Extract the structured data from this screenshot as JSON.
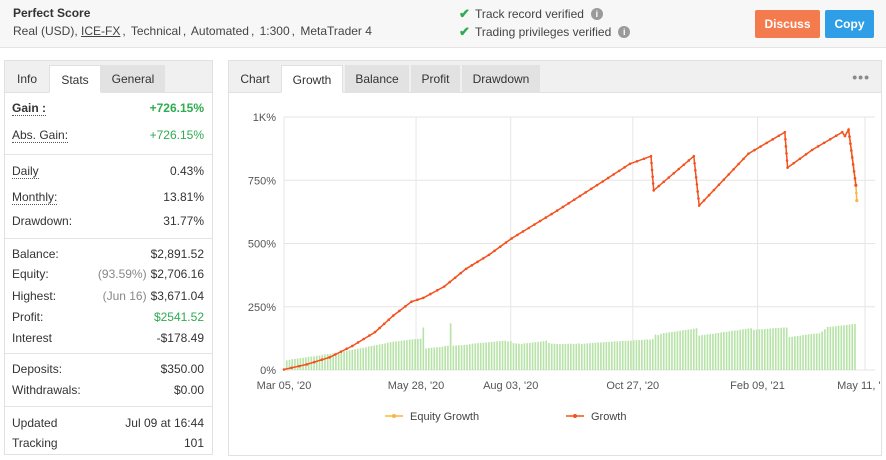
{
  "header": {
    "name": "Perfect Score",
    "account_type": "Real (USD),",
    "broker": "ICE-FX",
    "system": "Technical",
    "execution": "Automated",
    "leverage": "1:300",
    "platform": "MetaTrader 4",
    "verify_track": "Track record verified",
    "verify_privileges": "Trading privileges verified",
    "discuss_label": "Discuss",
    "copy_label": "Copy",
    "colors": {
      "discuss": "#f47b4e",
      "copy": "#2e9ee6",
      "verified": "#2eac4f"
    }
  },
  "left_tabs": [
    "Info",
    "Stats",
    "General"
  ],
  "stats": {
    "gain_label": "Gain :",
    "gain_value": "+726.15%",
    "abs_gain_label": "Abs. Gain:",
    "abs_gain_value": "+726.15%",
    "daily_label": "Daily",
    "daily_value": "0.43%",
    "monthly_label": "Monthly:",
    "monthly_value": "13.81%",
    "drawdown_label": "Drawdown:",
    "drawdown_value": "31.77%",
    "balance_label": "Balance:",
    "balance_value": "$2,891.52",
    "equity_label": "Equity:",
    "equity_pre": "(93.59%)",
    "equity_value": "$2,706.16",
    "highest_label": "Highest:",
    "highest_pre": "(Jun 16)",
    "highest_value": "$3,671.04",
    "profit_label": "Profit:",
    "profit_value": "$2541.52",
    "interest_label": "Interest",
    "interest_value": "-$178.49",
    "deposits_label": "Deposits:",
    "deposits_value": "$350.00",
    "withdrawals_label": "Withdrawals:",
    "withdrawals_value": "$0.00",
    "updated_label": "Updated",
    "updated_value": "Jul 09 at 16:44",
    "tracking_label": "Tracking",
    "tracking_value": "101"
  },
  "chart_tabs": [
    "Chart",
    "Growth",
    "Balance",
    "Profit",
    "Drawdown"
  ],
  "chart_data": {
    "type": "line",
    "y_ticks": [
      "0%",
      "250%",
      "500%",
      "750%",
      "1K%"
    ],
    "ylim": [
      0,
      1000
    ],
    "x_ticks": [
      "Mar 05, '20",
      "May 28, '20",
      "Aug 03, '20",
      "Oct 27, '20",
      "Feb 09, '21",
      "May 11, '21"
    ],
    "x_tick_positions": [
      0,
      14.5,
      24.9,
      38.3,
      52.0,
      63.8
    ],
    "x_range": [
      0,
      64.9
    ],
    "legend": [
      "Equity Growth",
      "Growth"
    ],
    "colors": {
      "growth": "#f4511e",
      "equity": "#f9b53d",
      "bars": "#b7e3a8",
      "grid": "#e6e6e6"
    },
    "series": [
      {
        "name": "Growth",
        "points": [
          [
            0,
            2
          ],
          [
            2.5,
            22
          ],
          [
            5,
            50
          ],
          [
            7.5,
            95
          ],
          [
            10,
            150
          ],
          [
            12,
            215
          ],
          [
            14,
            270
          ],
          [
            15.3,
            285
          ],
          [
            17.6,
            330
          ],
          [
            20,
            400
          ],
          [
            22.5,
            455
          ],
          [
            25,
            520
          ],
          [
            30,
            630
          ],
          [
            35,
            745
          ],
          [
            38,
            815
          ],
          [
            40.3,
            845
          ],
          [
            40.6,
            710
          ],
          [
            45,
            845
          ],
          [
            45.6,
            650
          ],
          [
            51,
            855
          ],
          [
            55,
            940
          ],
          [
            55.3,
            800
          ],
          [
            58,
            870
          ],
          [
            61.3,
            940
          ],
          [
            61.6,
            925
          ],
          [
            62,
            950
          ],
          [
            62.8,
            730
          ]
        ]
      },
      {
        "name": "Equity Growth",
        "points": [
          [
            61.3,
            940
          ],
          [
            61.6,
            925
          ],
          [
            62,
            950
          ],
          [
            62.8,
            730
          ],
          [
            62.9,
            670
          ]
        ]
      }
    ],
    "bars": [
      [
        0.3,
        38
      ],
      [
        0.6,
        40
      ],
      [
        0.9,
        43
      ],
      [
        1.2,
        44
      ],
      [
        1.5,
        46
      ],
      [
        1.8,
        47
      ],
      [
        2.1,
        48
      ],
      [
        2.4,
        50
      ],
      [
        2.7,
        52
      ],
      [
        3.0,
        53
      ],
      [
        3.3,
        54
      ],
      [
        3.6,
        56
      ],
      [
        3.9,
        57
      ],
      [
        4.2,
        60
      ],
      [
        4.5,
        62
      ],
      [
        4.8,
        63
      ],
      [
        5.1,
        64
      ],
      [
        5.4,
        66
      ],
      [
        5.7,
        68
      ],
      [
        6.0,
        70
      ],
      [
        6.3,
        72
      ],
      [
        6.6,
        74
      ],
      [
        6.9,
        76
      ],
      [
        7.2,
        78
      ],
      [
        7.5,
        80
      ],
      [
        7.8,
        82
      ],
      [
        8.1,
        84
      ],
      [
        8.4,
        86
      ],
      [
        8.7,
        88
      ],
      [
        9.0,
        90
      ],
      [
        9.3,
        93
      ],
      [
        9.6,
        95
      ],
      [
        9.9,
        97
      ],
      [
        10.2,
        99
      ],
      [
        10.5,
        101
      ],
      [
        10.8,
        103
      ],
      [
        11.1,
        105
      ],
      [
        11.4,
        108
      ],
      [
        11.7,
        110
      ],
      [
        12.0,
        112
      ],
      [
        12.3,
        113
      ],
      [
        12.6,
        114
      ],
      [
        12.9,
        116
      ],
      [
        13.2,
        117
      ],
      [
        13.5,
        118
      ],
      [
        13.8,
        120
      ],
      [
        14.1,
        121
      ],
      [
        14.4,
        122
      ],
      [
        14.7,
        123
      ],
      [
        15.0,
        124
      ],
      [
        15.3,
        168
      ],
      [
        15.6,
        85
      ],
      [
        15.9,
        87
      ],
      [
        16.2,
        88
      ],
      [
        16.5,
        89
      ],
      [
        16.8,
        90
      ],
      [
        17.1,
        90
      ],
      [
        17.4,
        92
      ],
      [
        17.7,
        95
      ],
      [
        18.0,
        96
      ],
      [
        18.3,
        185
      ],
      [
        18.6,
        96
      ],
      [
        18.9,
        97
      ],
      [
        19.2,
        98
      ],
      [
        19.5,
        98
      ],
      [
        19.8,
        99
      ],
      [
        20.1,
        100
      ],
      [
        20.4,
        102
      ],
      [
        20.7,
        104
      ],
      [
        21.0,
        105
      ],
      [
        21.3,
        106
      ],
      [
        21.6,
        107
      ],
      [
        21.9,
        108
      ],
      [
        22.2,
        109
      ],
      [
        22.5,
        110
      ],
      [
        22.8,
        111
      ],
      [
        23.1,
        112
      ],
      [
        23.4,
        113
      ],
      [
        23.7,
        114
      ],
      [
        24.0,
        115
      ],
      [
        24.3,
        116
      ],
      [
        24.6,
        113
      ],
      [
        24.9,
        114
      ],
      [
        25.2,
        106
      ],
      [
        25.5,
        105
      ],
      [
        25.8,
        104
      ],
      [
        26.1,
        103
      ],
      [
        26.4,
        105
      ],
      [
        26.7,
        106
      ],
      [
        27.0,
        107
      ],
      [
        27.3,
        109
      ],
      [
        27.6,
        110
      ],
      [
        27.9,
        111
      ],
      [
        28.2,
        112
      ],
      [
        28.5,
        114
      ],
      [
        28.8,
        116
      ],
      [
        29.1,
        107
      ],
      [
        29.4,
        104
      ],
      [
        29.7,
        104
      ],
      [
        30.0,
        103
      ],
      [
        30.3,
        102
      ],
      [
        30.6,
        103
      ],
      [
        30.9,
        103
      ],
      [
        31.2,
        104
      ],
      [
        31.5,
        104
      ],
      [
        31.8,
        103
      ],
      [
        32.1,
        104
      ],
      [
        32.4,
        105
      ],
      [
        32.7,
        103
      ],
      [
        33.0,
        104
      ],
      [
        33.3,
        105
      ],
      [
        33.6,
        106
      ],
      [
        33.9,
        107
      ],
      [
        34.2,
        108
      ],
      [
        34.5,
        109
      ],
      [
        34.8,
        109
      ],
      [
        35.1,
        110
      ],
      [
        35.4,
        111
      ],
      [
        35.7,
        111
      ],
      [
        36.0,
        112
      ],
      [
        36.3,
        113
      ],
      [
        36.6,
        113
      ],
      [
        36.9,
        114
      ],
      [
        37.2,
        115
      ],
      [
        37.5,
        115
      ],
      [
        37.8,
        116
      ],
      [
        38.1,
        116
      ],
      [
        38.4,
        117
      ],
      [
        38.7,
        118
      ],
      [
        39.0,
        118
      ],
      [
        39.3,
        119
      ],
      [
        39.6,
        120
      ],
      [
        39.9,
        121
      ],
      [
        40.2,
        120
      ],
      [
        40.5,
        122
      ],
      [
        40.8,
        140
      ],
      [
        41.1,
        138
      ],
      [
        41.4,
        143
      ],
      [
        41.7,
        146
      ],
      [
        42.0,
        147
      ],
      [
        42.3,
        149
      ],
      [
        42.6,
        150
      ],
      [
        42.9,
        152
      ],
      [
        43.2,
        153
      ],
      [
        43.5,
        155
      ],
      [
        43.8,
        157
      ],
      [
        44.1,
        158
      ],
      [
        44.4,
        160
      ],
      [
        44.7,
        161
      ],
      [
        45.0,
        163
      ],
      [
        45.3,
        165
      ],
      [
        45.6,
        136
      ],
      [
        45.9,
        138
      ],
      [
        46.2,
        139
      ],
      [
        46.5,
        141
      ],
      [
        46.8,
        142
      ],
      [
        47.1,
        143
      ],
      [
        47.4,
        145
      ],
      [
        47.7,
        146
      ],
      [
        48.0,
        148
      ],
      [
        48.3,
        150
      ],
      [
        48.6,
        151
      ],
      [
        48.9,
        153
      ],
      [
        49.2,
        155
      ],
      [
        49.5,
        156
      ],
      [
        49.8,
        157
      ],
      [
        50.1,
        159
      ],
      [
        50.4,
        161
      ],
      [
        50.7,
        162
      ],
      [
        51.0,
        164
      ],
      [
        51.3,
        165
      ],
      [
        51.6,
        159
      ],
      [
        51.9,
        160
      ],
      [
        52.2,
        161
      ],
      [
        52.5,
        161
      ],
      [
        52.8,
        162
      ],
      [
        53.1,
        163
      ],
      [
        53.4,
        164
      ],
      [
        53.7,
        165
      ],
      [
        54.0,
        166
      ],
      [
        54.3,
        166
      ],
      [
        54.6,
        167
      ],
      [
        54.9,
        168
      ],
      [
        55.2,
        168
      ],
      [
        55.5,
        130
      ],
      [
        55.8,
        131
      ],
      [
        56.1,
        133
      ],
      [
        56.4,
        134
      ],
      [
        56.7,
        136
      ],
      [
        57.0,
        138
      ],
      [
        57.3,
        139
      ],
      [
        57.6,
        141
      ],
      [
        57.9,
        142
      ],
      [
        58.2,
        143
      ],
      [
        58.5,
        144
      ],
      [
        58.8,
        145
      ],
      [
        59.1,
        152
      ],
      [
        59.4,
        161
      ],
      [
        59.7,
        170
      ],
      [
        60.0,
        171
      ],
      [
        60.3,
        172
      ],
      [
        60.6,
        173
      ],
      [
        60.9,
        175
      ],
      [
        61.2,
        176
      ],
      [
        61.5,
        177
      ],
      [
        61.8,
        178
      ],
      [
        62.1,
        180
      ],
      [
        62.4,
        181
      ],
      [
        62.7,
        182
      ]
    ]
  }
}
